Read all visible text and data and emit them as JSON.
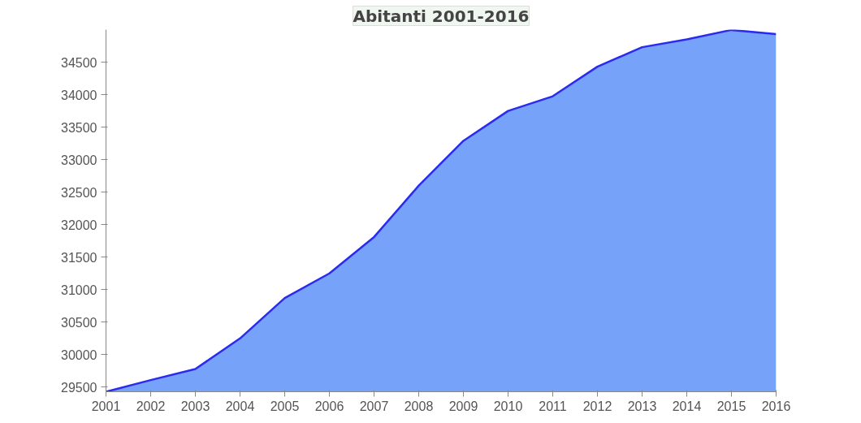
{
  "chart_data": {
    "type": "area",
    "title": "Abitanti 2001-2016",
    "x": [
      2001,
      2002,
      2003,
      2004,
      2005,
      2006,
      2007,
      2008,
      2009,
      2010,
      2011,
      2012,
      2013,
      2014,
      2015,
      2016
    ],
    "series": [
      {
        "color": "#76a3f9",
        "values": [
          29430,
          29610,
          29780,
          30250,
          30870,
          31250,
          31810,
          32600,
          33290,
          33750,
          33975,
          34430,
          34730,
          34850,
          34995,
          34930
        ]
      }
    ],
    "xlim": [
      2001,
      2016
    ],
    "xticks": [
      2001,
      2002,
      2003,
      2004,
      2005,
      2006,
      2007,
      2008,
      2009,
      2010,
      2011,
      2012,
      2013,
      2014,
      2015,
      2016
    ],
    "ylim": [
      29430,
      35000
    ],
    "yticks": [
      29500,
      30000,
      30500,
      31000,
      31500,
      32000,
      32500,
      33000,
      33500,
      34000,
      34500
    ],
    "grid": false
  }
}
